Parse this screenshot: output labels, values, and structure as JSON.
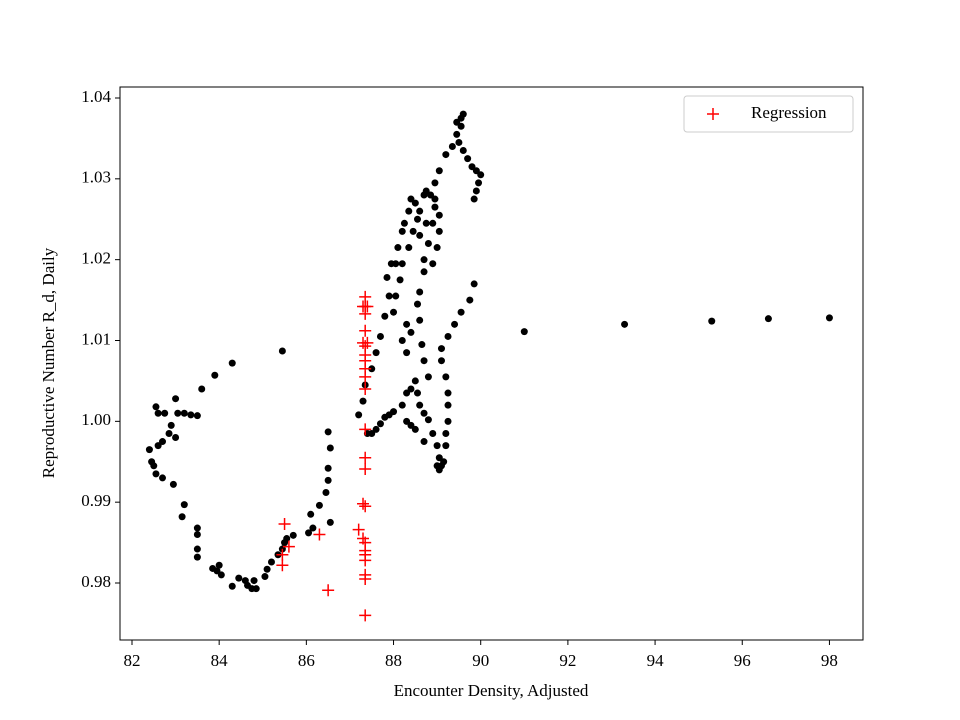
{
  "chart_data": {
    "type": "scatter",
    "x_label": "Encounter Density, Adjusted",
    "y_label": "Reproductive Number R_d, Daily",
    "xlim": [
      81.725,
      98.77
    ],
    "ylim": [
      0.97295,
      1.04136
    ],
    "xticks": [
      82,
      84,
      86,
      88,
      90,
      92,
      94,
      96,
      98
    ],
    "yticks": [
      0.98,
      0.99,
      {
        "value": 1,
        "label": "1.00"
      },
      1.01,
      1.02,
      1.03,
      1.04
    ],
    "legend": "upper right",
    "series": [
      {
        "color": "#000000",
        "marker": "circle",
        "x": [
          82.4,
          82.45,
          82.5,
          82.55,
          82.6,
          82.7,
          82.85,
          83,
          82.9,
          83.05,
          83.2,
          83.35,
          83.5,
          83,
          82.55,
          82.6,
          82.75,
          83.6,
          83.9,
          84.3,
          85.45,
          82.7,
          82.95,
          83.2,
          83.15,
          83.5,
          83.5,
          83.5,
          83.5,
          83.85,
          83.95,
          84,
          84.05,
          84.3,
          84.45,
          84.6,
          84.65,
          84.75,
          84.8,
          84.85,
          85.05,
          85.1,
          85.2,
          85.35,
          85.45,
          85.5,
          85.55,
          85.7,
          86.05,
          86.15,
          86.1,
          86.3,
          86.45,
          86.5,
          86.5,
          86.55,
          86.5,
          86.55,
          87.2,
          87.3,
          87.35,
          87.5,
          87.4,
          87.5,
          87.6,
          87.7,
          87.8,
          87.9,
          88.0,
          88.2,
          88.3,
          88.4,
          88.5,
          88.55,
          88.6,
          88.7,
          88.8,
          88.9,
          89.0,
          89.05,
          89.1,
          89.0,
          89.05,
          89.15,
          89.2,
          89.2,
          89.25,
          89.25,
          89.25,
          89.2,
          89.1,
          89.1,
          89.25,
          89.4,
          89.55,
          89.75,
          89.85,
          88.3,
          88.4,
          88.5,
          88.7,
          88.8,
          88.7,
          88.65,
          88.6,
          88.55,
          88.6,
          88.7,
          88.7,
          88.8,
          88.9,
          88.95,
          88.75,
          88.6,
          88.6,
          88.7,
          88.75,
          88.85,
          88.95,
          89.05,
          89.05,
          89.0,
          88.9,
          87.95,
          88.05,
          88.1,
          88.2,
          88.25,
          88.35,
          88.4,
          88.5,
          88.55,
          88.45,
          88.35,
          88.2,
          88.15,
          88.05,
          88.0,
          87.9,
          87.8,
          87.7,
          87.6,
          87.85,
          88.3,
          88.4,
          88.2,
          88.3,
          88.95,
          89.05,
          89.2,
          89.35,
          89.45,
          89.45,
          89.55,
          89.6,
          89.55,
          89.5,
          89.6,
          89.7,
          89.8,
          89.9,
          90.0,
          89.95,
          89.9,
          89.85,
          91,
          93.3,
          95.3,
          96.6,
          98
        ],
        "values": [
          0.9965,
          0.995,
          0.9945,
          0.9935,
          0.997,
          0.9975,
          0.9985,
          0.998,
          0.9995,
          1.001,
          1.001,
          1.0008,
          1.0007,
          1.0028,
          1.0018,
          1.001,
          1.001,
          1.004,
          1.0057,
          1.0072,
          1.0087,
          0.993,
          0.9922,
          0.9897,
          0.9882,
          0.9868,
          0.986,
          0.9842,
          0.9832,
          0.9818,
          0.9815,
          0.9822,
          0.981,
          0.9796,
          0.9806,
          0.9803,
          0.9797,
          0.9793,
          0.9803,
          0.9793,
          0.9808,
          0.9817,
          0.9826,
          0.9835,
          0.9842,
          0.985,
          0.9855,
          0.9859,
          0.9862,
          0.9868,
          0.9885,
          0.9896,
          0.9912,
          0.9927,
          0.9942,
          0.9967,
          0.9987,
          0.9875,
          1.0008,
          1.0025,
          1.0045,
          1.0065,
          0.9985,
          0.9985,
          0.999,
          0.9997,
          1.0005,
          1.0008,
          1.0012,
          1.002,
          1.0035,
          1.004,
          1.005,
          1.0035,
          1.002,
          1.001,
          1.0002,
          0.9985,
          0.997,
          0.9955,
          0.9945,
          0.9945,
          0.994,
          0.995,
          0.997,
          0.9985,
          1.0,
          1.002,
          1.0035,
          1.0055,
          1.0075,
          1.009,
          1.0105,
          1.012,
          1.0135,
          1.015,
          1.017,
          1.0,
          0.9995,
          0.999,
          0.9975,
          1.0055,
          1.0075,
          1.0095,
          1.0125,
          1.0145,
          1.016,
          1.0185,
          1.02,
          1.022,
          1.0245,
          1.0265,
          1.0245,
          1.023,
          1.026,
          1.028,
          1.0285,
          1.028,
          1.0275,
          1.0255,
          1.0235,
          1.0215,
          1.0195,
          1.0195,
          1.0195,
          1.0215,
          1.0235,
          1.0245,
          1.026,
          1.0275,
          1.027,
          1.025,
          1.0235,
          1.0215,
          1.0195,
          1.0175,
          1.0155,
          1.0135,
          1.0155,
          1.013,
          1.0105,
          1.0085,
          1.0178,
          1.012,
          1.011,
          1.01,
          1.0085,
          1.0295,
          1.031,
          1.033,
          1.034,
          1.0355,
          1.037,
          1.0375,
          1.038,
          1.0365,
          1.0345,
          1.0335,
          1.0325,
          1.0315,
          1.031,
          1.0305,
          1.0295,
          1.0285,
          1.0275,
          1.0111,
          1.012,
          1.0124,
          1.0127,
          1.0128
        ]
      },
      {
        "name": "Regression",
        "color": "#ff0000",
        "marker": "plus",
        "x": [
          85.5,
          85.6,
          85.45,
          85.45,
          86.3,
          86.5,
          87.2,
          87.3,
          87.35,
          87.3,
          87.35,
          87.35,
          87.35,
          87.35,
          87.35,
          87.35,
          87.35,
          87.35,
          87.35,
          87.35,
          87.35,
          87.35,
          87.35,
          87.35,
          87.35,
          87.35,
          87.3,
          87.4,
          87.35,
          87.35,
          87.35,
          87.3,
          87.4,
          87.35
        ],
        "values": [
          0.9873,
          0.9845,
          0.9835,
          0.9822,
          0.986,
          0.9791,
          0.9866,
          0.9898,
          0.9895,
          0.9855,
          0.985,
          0.984,
          0.9835,
          0.9828,
          0.981,
          0.9805,
          0.976,
          0.9955,
          0.9941,
          0.999,
          1.004,
          1.0055,
          1.0065,
          1.0075,
          1.0082,
          1.0093,
          1.0097,
          1.0097,
          1.0112,
          1.0133,
          1.0142,
          1.0142,
          1.0142,
          1.0154
        ]
      }
    ]
  }
}
